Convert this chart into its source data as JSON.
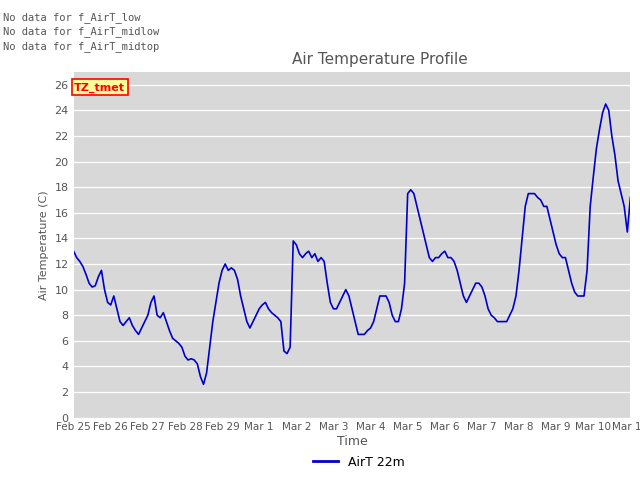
{
  "title": "Air Temperature Profile",
  "ylabel": "Air Temperature (C)",
  "xlabel": "Time",
  "legend_label": "AirT 22m",
  "line_color": "#0000cc",
  "background_color": "#ffffff",
  "plot_bg_color": "#d8d8d8",
  "ylim": [
    0,
    27
  ],
  "yticks": [
    0,
    2,
    4,
    6,
    8,
    10,
    12,
    14,
    16,
    18,
    20,
    22,
    24,
    26
  ],
  "annotations": [
    "No data for f_AirT_low",
    "No data for f_AirT_midlow",
    "No data for f_AirT_midtop"
  ],
  "annotation_box_label": "TZ_tmet",
  "x_tick_labels": [
    "Feb 25",
    "Feb 26",
    "Feb 27",
    "Feb 28",
    "Feb 29",
    "Mar 1",
    "Mar 2",
    "Mar 3",
    "Mar 4",
    "Mar 5",
    "Mar 6",
    "Mar 7",
    "Mar 8",
    "Mar 9",
    "Mar 10",
    "Mar 11"
  ],
  "time_data": [
    0.0,
    0.083,
    0.167,
    0.25,
    0.333,
    0.417,
    0.5,
    0.583,
    0.667,
    0.75,
    0.833,
    0.917,
    1.0,
    1.083,
    1.167,
    1.25,
    1.333,
    1.417,
    1.5,
    1.583,
    1.667,
    1.75,
    1.833,
    1.917,
    2.0,
    2.083,
    2.167,
    2.25,
    2.333,
    2.417,
    2.5,
    2.583,
    2.667,
    2.75,
    2.833,
    2.917,
    3.0,
    3.083,
    3.167,
    3.25,
    3.333,
    3.417,
    3.5,
    3.583,
    3.667,
    3.75,
    3.833,
    3.917,
    4.0,
    4.083,
    4.167,
    4.25,
    4.333,
    4.417,
    4.5,
    4.583,
    4.667,
    4.75,
    4.833,
    4.917,
    5.0,
    5.083,
    5.167,
    5.25,
    5.333,
    5.417,
    5.5,
    5.583,
    5.667,
    5.75,
    5.833,
    5.917,
    6.0,
    6.083,
    6.167,
    6.25,
    6.333,
    6.417,
    6.5,
    6.583,
    6.667,
    6.75,
    6.833,
    6.917,
    7.0,
    7.083,
    7.167,
    7.25,
    7.333,
    7.417,
    7.5,
    7.583,
    7.667,
    7.75,
    7.833,
    7.917,
    8.0,
    8.083,
    8.167,
    8.25,
    8.333,
    8.417,
    8.5,
    8.583,
    8.667,
    8.75,
    8.833,
    8.917,
    9.0,
    9.083,
    9.167,
    9.25,
    9.333,
    9.417,
    9.5,
    9.583,
    9.667,
    9.75,
    9.833,
    9.917,
    10.0,
    10.083,
    10.167,
    10.25,
    10.333,
    10.417,
    10.5,
    10.583,
    10.667,
    10.75,
    10.833,
    10.917,
    11.0,
    11.083,
    11.167,
    11.25,
    11.333,
    11.417,
    11.5,
    11.583,
    11.667,
    11.75,
    11.833,
    11.917,
    12.0,
    12.083,
    12.167,
    12.25,
    12.333,
    12.417,
    12.5,
    12.583,
    12.667,
    12.75,
    12.833,
    12.917,
    13.0,
    13.083,
    13.167,
    13.25,
    13.333,
    13.417,
    13.5,
    13.583,
    13.667,
    13.75,
    13.833,
    13.917,
    14.0,
    14.083,
    14.167,
    14.25,
    14.333,
    14.417,
    14.5,
    14.583,
    14.667,
    14.75,
    14.833,
    14.917,
    15.0
  ],
  "temp_data": [
    13.0,
    12.5,
    12.2,
    11.8,
    11.2,
    10.5,
    10.2,
    10.3,
    11.0,
    11.5,
    10.0,
    9.0,
    8.8,
    9.5,
    8.5,
    7.5,
    7.2,
    7.5,
    7.8,
    7.2,
    6.8,
    6.5,
    7.0,
    7.5,
    8.0,
    9.0,
    9.5,
    8.0,
    7.8,
    8.2,
    7.5,
    6.8,
    6.2,
    6.0,
    5.8,
    5.5,
    4.8,
    4.5,
    4.6,
    4.5,
    4.2,
    3.2,
    2.6,
    3.5,
    5.5,
    7.5,
    9.0,
    10.5,
    11.5,
    12.0,
    11.5,
    11.7,
    11.5,
    10.8,
    9.5,
    8.5,
    7.5,
    7.0,
    7.5,
    8.0,
    8.5,
    8.8,
    9.0,
    8.5,
    8.2,
    8.0,
    7.8,
    7.5,
    5.2,
    5.0,
    5.5,
    13.8,
    13.5,
    12.8,
    12.5,
    12.8,
    13.0,
    12.5,
    12.8,
    12.2,
    12.5,
    12.2,
    10.5,
    9.0,
    8.5,
    8.5,
    9.0,
    9.5,
    10.0,
    9.5,
    8.5,
    7.5,
    6.5,
    6.5,
    6.5,
    6.8,
    7.0,
    7.5,
    8.5,
    9.5,
    9.5,
    9.5,
    9.0,
    8.0,
    7.5,
    7.5,
    8.5,
    10.5,
    17.5,
    17.8,
    17.5,
    16.5,
    15.5,
    14.5,
    13.5,
    12.5,
    12.2,
    12.5,
    12.5,
    12.8,
    13.0,
    12.5,
    12.5,
    12.2,
    11.5,
    10.5,
    9.5,
    9.0,
    9.5,
    10.0,
    10.5,
    10.5,
    10.2,
    9.5,
    8.5,
    8.0,
    7.8,
    7.5,
    7.5,
    7.5,
    7.5,
    8.0,
    8.5,
    9.5,
    11.5,
    14.0,
    16.5,
    17.5,
    17.5,
    17.5,
    17.2,
    17.0,
    16.5,
    16.5,
    15.5,
    14.5,
    13.5,
    12.8,
    12.5,
    12.5,
    11.5,
    10.5,
    9.8,
    9.5,
    9.5,
    9.5,
    11.5,
    16.5,
    18.8,
    21.0,
    22.5,
    23.8,
    24.5,
    24.0,
    22.0,
    20.5,
    18.5,
    17.5,
    16.5,
    14.5,
    17.2
  ]
}
